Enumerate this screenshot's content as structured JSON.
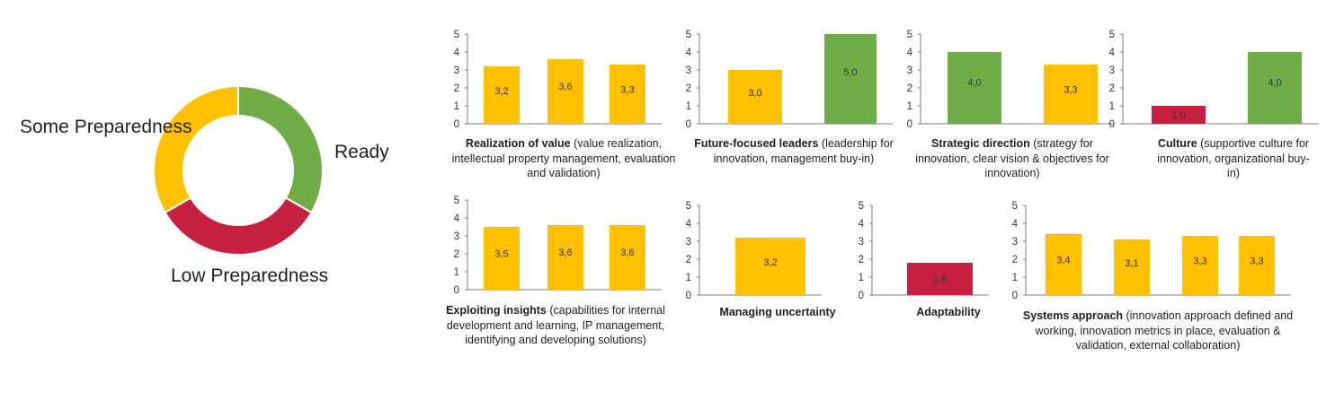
{
  "donut": {
    "labels": {
      "some": "Some Preparedness",
      "ready": "Ready",
      "low": "Low Preparedness"
    }
  },
  "colors": {
    "ready": "#70AD47",
    "some": "#FFC000",
    "low": "#C8203F"
  },
  "chart_data": [
    {
      "type": "pie",
      "categories": [
        "Ready",
        "Low Preparedness",
        "Some Preparedness"
      ],
      "values": [
        33.3,
        33.3,
        33.3
      ],
      "colors": [
        "#70AD47",
        "#C8203F",
        "#FFC000"
      ]
    },
    {
      "type": "bar",
      "title": "Realization of value",
      "subtitle": "(value realization, intellectual property management, evaluation and validation)",
      "ylim": [
        0,
        5
      ],
      "yticks": [
        "0",
        "1",
        "2",
        "3",
        "4",
        "5"
      ],
      "values": [
        3.2,
        3.6,
        3.3
      ],
      "labels": [
        "3,2",
        "3,6",
        "3,3"
      ],
      "colors": [
        "#FFC000",
        "#FFC000",
        "#FFC000"
      ]
    },
    {
      "type": "bar",
      "title": "Future-focused leaders",
      "subtitle": "(leadership for innovation, management buy-in)",
      "ylim": [
        0,
        5
      ],
      "yticks": [
        "0",
        "1",
        "2",
        "3",
        "4",
        "5"
      ],
      "values": [
        3.0,
        5.0
      ],
      "labels": [
        "3,0",
        "5,0"
      ],
      "colors": [
        "#FFC000",
        "#70AD47"
      ]
    },
    {
      "type": "bar",
      "title": "Strategic direction",
      "subtitle": "(strategy for innovation, clear vision & objectives for innovation)",
      "ylim": [
        0,
        5
      ],
      "yticks": [
        "0",
        "1",
        "2",
        "3",
        "4",
        "5"
      ],
      "values": [
        4.0,
        3.3
      ],
      "labels": [
        "4,0",
        "3,3"
      ],
      "colors": [
        "#70AD47",
        "#FFC000"
      ]
    },
    {
      "type": "bar",
      "title": "Culture",
      "subtitle": "(supportive culture for innovation, organizational buy-in)",
      "ylim": [
        0,
        5
      ],
      "yticks": [
        "0",
        "1",
        "2",
        "3",
        "4",
        "5"
      ],
      "values": [
        1.0,
        4.0
      ],
      "labels": [
        "1,0",
        "4,0"
      ],
      "colors": [
        "#C8203F",
        "#70AD47"
      ]
    },
    {
      "type": "bar",
      "title": "Exploiting insights",
      "subtitle": "(capabilities for internal development and learning, IP management, identifying and developing solutions)",
      "ylim": [
        0,
        5
      ],
      "yticks": [
        "0",
        "1",
        "2",
        "3",
        "4",
        "5"
      ],
      "values": [
        3.5,
        3.6,
        3.6
      ],
      "labels": [
        "3,5",
        "3,6",
        "3,6"
      ],
      "colors": [
        "#FFC000",
        "#FFC000",
        "#FFC000"
      ]
    },
    {
      "type": "bar",
      "title": "Managing uncertainty",
      "subtitle": "",
      "ylim": [
        0,
        5
      ],
      "yticks": [
        "0",
        "1",
        "2",
        "3",
        "4",
        "5"
      ],
      "values": [
        3.2
      ],
      "labels": [
        "3,2"
      ],
      "colors": [
        "#FFC000"
      ]
    },
    {
      "type": "bar",
      "title": "Adaptability",
      "subtitle": "",
      "ylim": [
        0,
        5
      ],
      "yticks": [
        "0",
        "1",
        "2",
        "3",
        "4",
        "5"
      ],
      "values": [
        1.8
      ],
      "labels": [
        "1,8"
      ],
      "colors": [
        "#C8203F"
      ]
    },
    {
      "type": "bar",
      "title": "Systems approach",
      "subtitle": "(innovation approach defined and working, innovation metrics in place, evaluation & validation, external collaboration)",
      "ylim": [
        0,
        5
      ],
      "yticks": [
        "0",
        "1",
        "2",
        "3",
        "4",
        "5"
      ],
      "values": [
        3.4,
        3.1,
        3.3,
        3.3
      ],
      "labels": [
        "3,4",
        "3,1",
        "3,3",
        "3,3"
      ],
      "colors": [
        "#FFC000",
        "#FFC000",
        "#FFC000",
        "#FFC000"
      ]
    }
  ]
}
